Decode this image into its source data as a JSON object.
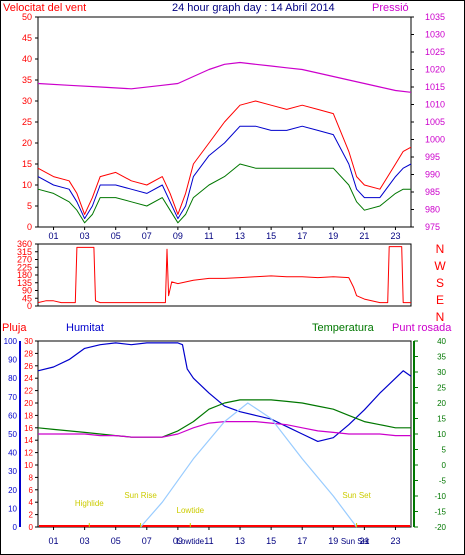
{
  "header": {
    "left_title": "Velocitat del vent",
    "center_title": "24 hour graph day : 14 Abril 2014",
    "right_title": "Pressió"
  },
  "colors": {
    "red": "#ff0000",
    "blue": "#0000cc",
    "green": "#007700",
    "magenta": "#cc00cc",
    "light_blue": "#99ccff",
    "tide_yellow": "#cccc00",
    "axis_navy": "#000080"
  },
  "x_ticks": [
    "01",
    "03",
    "05",
    "07",
    "09",
    "11",
    "13",
    "15",
    "17",
    "19",
    "21",
    "23"
  ],
  "chart_data": [
    {
      "id": "wind",
      "type": "line",
      "x_range_hours": [
        0,
        24
      ],
      "y_left": {
        "label": "Velocitat del vent",
        "ticks": [
          0,
          5,
          10,
          15,
          20,
          25,
          30,
          35,
          40,
          45,
          50
        ],
        "range": [
          0,
          50
        ]
      },
      "y_right": {
        "label": "Pressió",
        "ticks": [
          975,
          980,
          985,
          990,
          995,
          1000,
          1005,
          1010,
          1015,
          1020,
          1025,
          1030,
          1035
        ],
        "range": [
          975,
          1035
        ]
      },
      "series": [
        {
          "name": "gust",
          "color": "red",
          "axis": "left",
          "x": [
            0,
            1,
            2,
            2.5,
            3,
            3.5,
            4,
            5,
            6,
            7,
            8,
            8.5,
            9,
            9.5,
            10,
            11,
            12,
            13,
            14,
            15,
            16,
            17,
            18,
            19,
            20,
            20.5,
            21,
            22,
            23,
            23.5,
            24
          ],
          "y": [
            14,
            12,
            11,
            8,
            3,
            7,
            12,
            13,
            11,
            10,
            12,
            8,
            3,
            8,
            15,
            20,
            25,
            29,
            30,
            29,
            28,
            29,
            28,
            27,
            18,
            12,
            10,
            9,
            15,
            18,
            19
          ]
        },
        {
          "name": "average",
          "color": "blue",
          "axis": "left",
          "x": [
            0,
            1,
            2,
            2.5,
            3,
            3.5,
            4,
            5,
            6,
            7,
            8,
            8.5,
            9,
            9.5,
            10,
            11,
            12,
            13,
            14,
            15,
            16,
            17,
            18,
            19,
            20,
            20.5,
            21,
            22,
            23,
            23.5,
            24
          ],
          "y": [
            12,
            10,
            9,
            6,
            2,
            5,
            10,
            10,
            9,
            8,
            10,
            6,
            2,
            5,
            12,
            17,
            20,
            24,
            24,
            23,
            23,
            24,
            23,
            22,
            15,
            9,
            7,
            7,
            12,
            14,
            15
          ]
        },
        {
          "name": "speed",
          "color": "green",
          "axis": "left",
          "x": [
            0,
            1,
            2,
            2.5,
            3,
            3.5,
            4,
            5,
            6,
            7,
            8,
            8.5,
            9,
            9.5,
            10,
            11,
            12,
            13,
            14,
            15,
            16,
            17,
            18,
            19,
            20,
            20.5,
            21,
            22,
            23,
            23.5,
            24
          ],
          "y": [
            9,
            8,
            6,
            4,
            1,
            3,
            7,
            7,
            6,
            5,
            7,
            4,
            1,
            3,
            7,
            10,
            12,
            15,
            14,
            14,
            14,
            14,
            14,
            14,
            10,
            6,
            4,
            5,
            8,
            9,
            9
          ]
        },
        {
          "name": "pressure",
          "color": "magenta",
          "axis": "right",
          "x": [
            0,
            2,
            4,
            6,
            8,
            9,
            10,
            11,
            12,
            13,
            14,
            15,
            16,
            17,
            18,
            19,
            20,
            21,
            22,
            23,
            24
          ],
          "y": [
            1016,
            1015.5,
            1015,
            1014.5,
            1015.5,
            1016,
            1018,
            1020,
            1021.5,
            1022,
            1021.5,
            1021,
            1020.5,
            1020,
            1019,
            1018,
            1017,
            1016,
            1015,
            1014,
            1013.5
          ]
        }
      ]
    },
    {
      "id": "direction",
      "type": "line",
      "x_range_hours": [
        0,
        24
      ],
      "y_left": {
        "ticks": [
          0,
          45,
          90,
          135,
          180,
          225,
          270,
          315,
          360
        ],
        "range": [
          0,
          360
        ]
      },
      "y_right_labels": [
        "N",
        "W",
        "S",
        "E",
        "N"
      ],
      "series": [
        {
          "name": "direction",
          "color": "red",
          "axis": "left",
          "x": [
            0,
            0.5,
            1,
            1.5,
            2,
            2.4,
            2.5,
            3.6,
            3.7,
            4,
            6,
            8,
            8.2,
            8.3,
            8.4,
            8.6,
            9,
            10,
            11,
            12,
            13,
            14,
            15,
            16,
            17,
            18,
            19,
            20,
            20.3,
            20.5,
            21,
            22,
            22.5,
            22.6,
            23.4,
            23.5,
            24
          ],
          "y": [
            20,
            30,
            30,
            20,
            20,
            20,
            340,
            340,
            30,
            20,
            20,
            20,
            20,
            330,
            60,
            140,
            130,
            150,
            160,
            160,
            165,
            170,
            175,
            170,
            170,
            165,
            170,
            165,
            110,
            60,
            40,
            20,
            20,
            345,
            345,
            20,
            20
          ]
        }
      ]
    },
    {
      "id": "humidity_temp",
      "type": "line",
      "x_range_hours": [
        0,
        24
      ],
      "headers": {
        "rain": "Pluja",
        "humidity": "Humitat",
        "temperature": "Temperatura",
        "dewpoint": "Punt rosada"
      },
      "y_rain": {
        "ticks": [
          0,
          2,
          4,
          6,
          8,
          10,
          12,
          14,
          16,
          18,
          20,
          22,
          24,
          26,
          28,
          30
        ],
        "range": [
          0,
          30
        ]
      },
      "y_humidity": {
        "ticks": [
          0,
          10,
          20,
          30,
          40,
          50,
          60,
          70,
          80,
          90,
          100
        ],
        "range": [
          0,
          100
        ]
      },
      "y_temp": {
        "ticks": [
          -20,
          -15,
          -10,
          -5,
          0,
          5,
          10,
          15,
          20,
          25,
          30,
          35,
          40
        ],
        "range": [
          -20,
          40
        ]
      },
      "series": [
        {
          "name": "humidity",
          "color": "blue",
          "axis": "humidity",
          "x": [
            0,
            1,
            2,
            3,
            4,
            5,
            6,
            7,
            8,
            8.5,
            9,
            9.3,
            9.6,
            10,
            11,
            12,
            13,
            14,
            15,
            16,
            17,
            18,
            19,
            20,
            21,
            22,
            23,
            23.5,
            24
          ],
          "y": [
            84,
            86,
            90,
            96,
            98,
            99,
            98,
            99,
            99,
            99,
            99,
            98,
            85,
            80,
            72,
            65,
            62,
            60,
            58,
            54,
            50,
            46,
            48,
            55,
            63,
            72,
            80,
            84,
            81
          ]
        },
        {
          "name": "temperature",
          "color": "green",
          "axis": "temp",
          "x": [
            0,
            1,
            2,
            3,
            4,
            5,
            6,
            7,
            8,
            9,
            10,
            11,
            12,
            13,
            14,
            15,
            16,
            17,
            18,
            19,
            20,
            21,
            22,
            23,
            24
          ],
          "y": [
            12,
            11.5,
            11,
            10.5,
            10,
            9.5,
            9,
            9,
            9,
            11,
            14,
            18,
            20,
            21,
            21,
            21,
            20.5,
            20,
            19,
            18,
            16,
            14,
            13,
            12,
            12
          ]
        },
        {
          "name": "dewpoint",
          "color": "magenta",
          "axis": "temp",
          "x": [
            0,
            1,
            2,
            3,
            4,
            5,
            6,
            7,
            8,
            9,
            10,
            11,
            12,
            13,
            14,
            15,
            16,
            17,
            18,
            19,
            20,
            21,
            22,
            23,
            24
          ],
          "y": [
            10,
            10,
            10,
            10,
            9.5,
            9.5,
            9,
            9,
            9,
            10,
            12,
            13.5,
            14,
            14,
            14,
            13.5,
            13,
            12,
            11,
            10.5,
            10,
            10,
            10,
            9.5,
            9.5
          ]
        },
        {
          "name": "sun_elevation",
          "color": "light_blue",
          "axis": "temp",
          "x": [
            6.6,
            8,
            10,
            12,
            13.5,
            15,
            17,
            19,
            20.5
          ],
          "y": [
            -20,
            -12,
            2,
            14,
            20,
            15,
            2,
            -10,
            -20
          ]
        }
      ],
      "markers": [
        {
          "label": "Highlide",
          "hour": 3.3
        },
        {
          "label": "Sun Rise",
          "hour": 6.6
        },
        {
          "label": "Lowtide",
          "hour": 9.8
        },
        {
          "label": "Sun Set",
          "hour": 20.5
        }
      ],
      "bottom_labels": [
        {
          "label": "Lowtide",
          "hour": 9.8
        },
        {
          "label": "Sun Set",
          "hour": 20.4
        }
      ]
    }
  ]
}
